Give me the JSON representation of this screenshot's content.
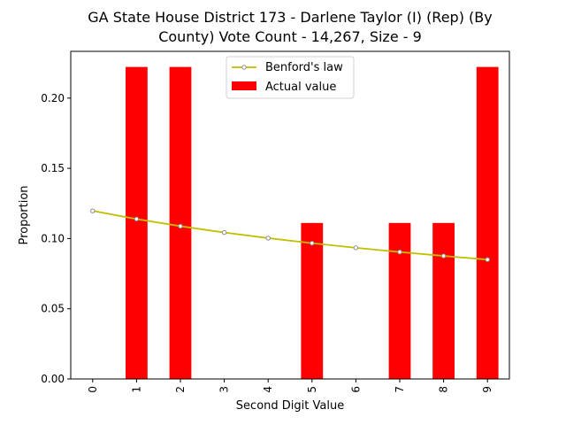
{
  "chart_data": {
    "type": "bar",
    "title_lines": [
      "GA State House District 173 - Darlene Taylor (I) (Rep) (By",
      "County) Vote Count - 14,267, Size - 9"
    ],
    "xlabel": "Second Digit Value",
    "ylabel": "Proportion",
    "categories": [
      "0",
      "1",
      "2",
      "3",
      "4",
      "5",
      "6",
      "7",
      "8",
      "9"
    ],
    "ylim": [
      0,
      0.2333
    ],
    "yticks": [
      0.0,
      0.05,
      0.1,
      0.15,
      0.2
    ],
    "ytick_labels": [
      "0.00",
      "0.05",
      "0.10",
      "0.15",
      "0.20"
    ],
    "legend_position": "upper center",
    "series": [
      {
        "name": "Benford's law",
        "kind": "line",
        "color": "#bfbf00",
        "marker_color": "#8c8c8c",
        "values": [
          0.1197,
          0.1139,
          0.1088,
          0.1043,
          0.1003,
          0.0967,
          0.0934,
          0.0904,
          0.0876,
          0.085
        ]
      },
      {
        "name": "Actual value",
        "kind": "bar",
        "color": "#ff0000",
        "values": [
          0.0,
          0.2222,
          0.2222,
          0.0,
          0.0,
          0.1111,
          0.0,
          0.1111,
          0.1111,
          0.2222
        ]
      }
    ]
  }
}
